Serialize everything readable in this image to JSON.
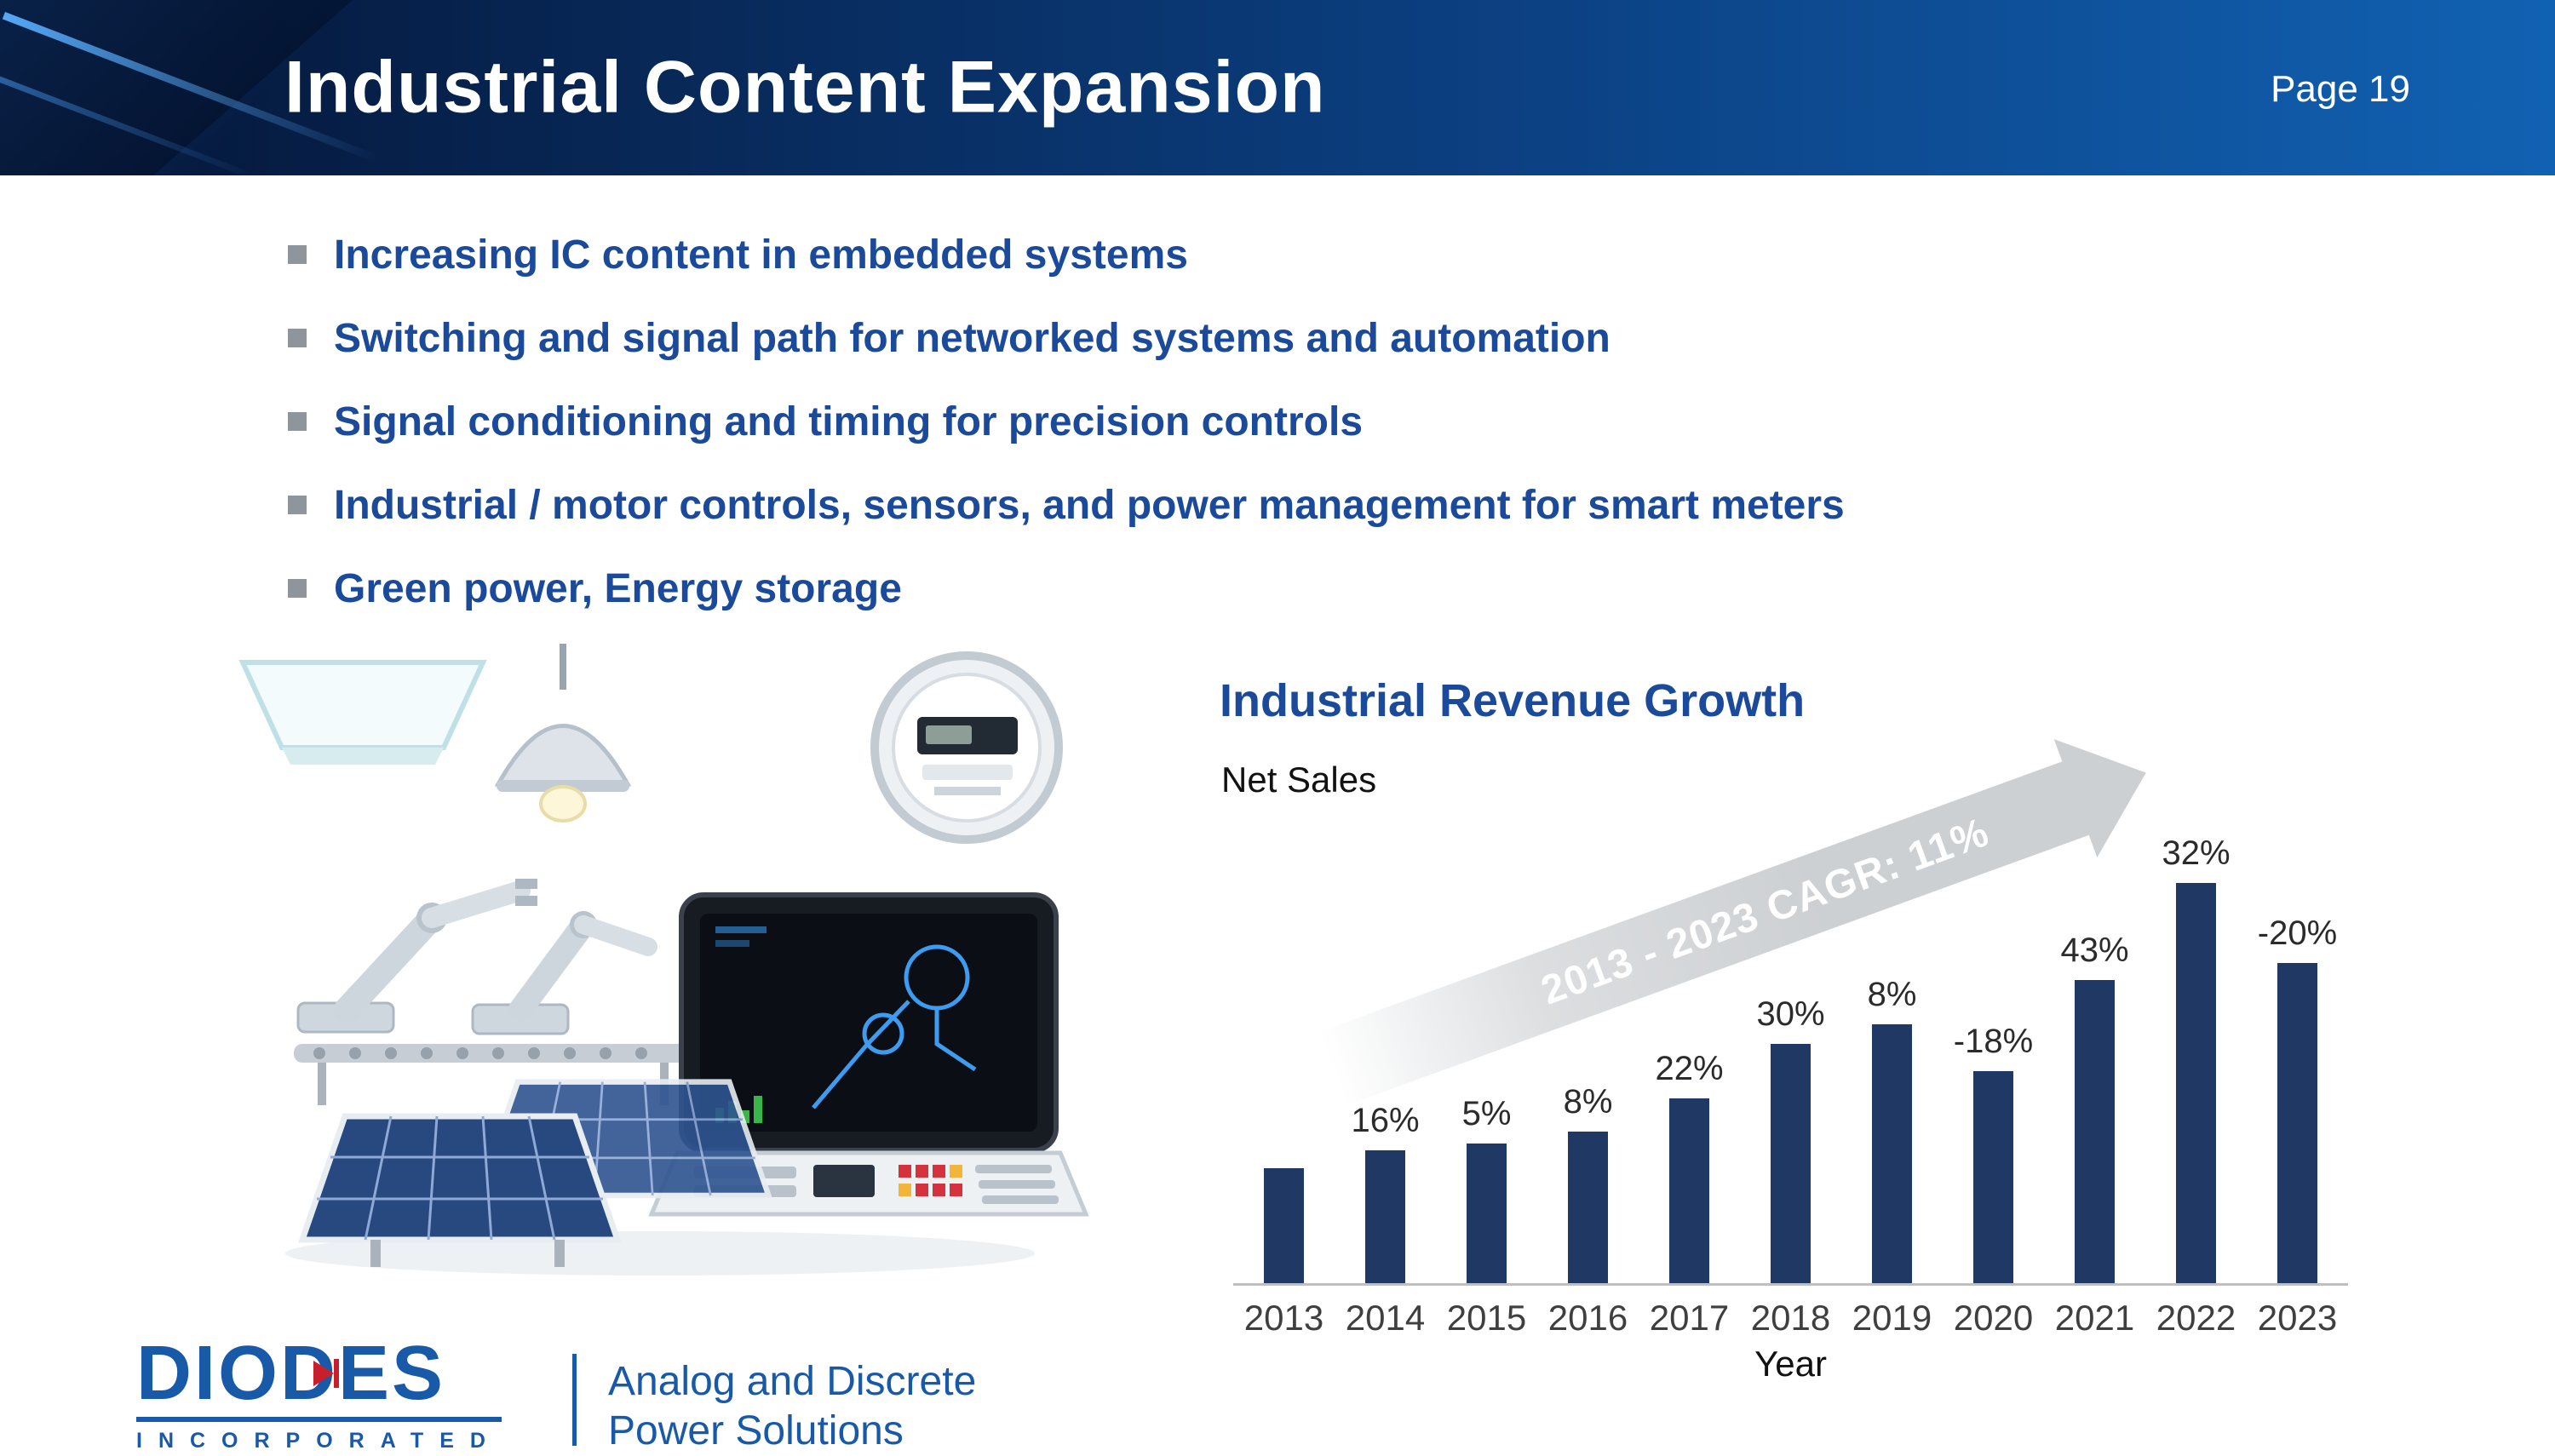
{
  "slide": {
    "title": "Industrial Content Expansion",
    "page_label": "Page 19"
  },
  "bullets": [
    "Increasing IC content in embedded systems",
    "Switching and signal path for networked systems and automation",
    "Signal conditioning and timing for precision controls",
    "Industrial / motor controls, sensors, and power management for smart meters",
    "Green power, Energy storage"
  ],
  "chart": {
    "title": "Industrial Revenue Growth",
    "subtitle": "Net Sales",
    "cagr_annotation": "2013 - 2023 CAGR: 11%",
    "xlabel": "Year"
  },
  "chart_data": {
    "type": "bar",
    "title": "Industrial Revenue Growth",
    "subtitle": "Net Sales",
    "annotation": "2013 - 2023 CAGR: 11%",
    "xlabel": "Year",
    "ylabel": "",
    "categories": [
      "2013",
      "2014",
      "2015",
      "2016",
      "2017",
      "2018",
      "2019",
      "2020",
      "2021",
      "2022",
      "2023"
    ],
    "growth_labels": [
      "",
      "16%",
      "5%",
      "8%",
      "22%",
      "30%",
      "8%",
      "-18%",
      "43%",
      "32%",
      "-20%"
    ],
    "values": [
      100,
      116,
      122,
      132,
      161,
      209,
      226,
      185,
      264,
      349,
      279
    ],
    "values_basis": "relative net sales indexed to 2013 = 100, estimated from bar heights and growth labels",
    "bar_color": "#1F3864",
    "axis_color": "#BFBFBF",
    "legend": "none",
    "grid": "off"
  },
  "footer": {
    "logo_primary": "DIODES",
    "logo_secondary": "INCORPORATED",
    "tagline_line1": "Analog and Discrete",
    "tagline_line2": "Power Solutions"
  },
  "colors": {
    "accent_blue": "#1B4A9B",
    "header_dark": "#041536",
    "header_light": "#1161B2",
    "bar_navy": "#1F3864",
    "logo_blue": "#1859A8",
    "arrow_gray": "#CDD0D3"
  },
  "icons": {
    "bullet_marker": "square-bullet",
    "collage_items": [
      "ceiling-light",
      "pendant-lamp",
      "smart-meter",
      "robot-arm",
      "conveyor",
      "monitor",
      "control-panel",
      "solar-panel"
    ]
  }
}
